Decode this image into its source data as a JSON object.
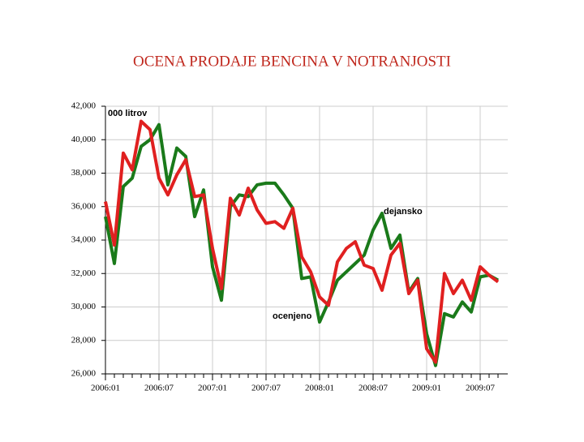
{
  "chart_data": {
    "type": "line",
    "title": "OCENA PRODAJE BENCINA V NOTRANJOSTI",
    "annotations": [
      "000 litrov",
      "dejansko",
      "ocenjeno"
    ],
    "categories": [
      "2006:01",
      null,
      null,
      null,
      null,
      null,
      "2006:07",
      null,
      null,
      null,
      null,
      null,
      "2007:01",
      null,
      null,
      null,
      null,
      null,
      "2007:07",
      null,
      null,
      null,
      null,
      null,
      "2008:01",
      null,
      null,
      null,
      null,
      null,
      "2008:07",
      null,
      null,
      null,
      null,
      null,
      "2009:01",
      null,
      null,
      null,
      null,
      null,
      "2009:07",
      null,
      null
    ],
    "series": [
      {
        "name": "dejansko",
        "color": "#1a7a1a",
        "values": [
          35400,
          32600,
          37200,
          37700,
          39600,
          40000,
          40900,
          37300,
          39500,
          39000,
          35400,
          37000,
          32400,
          30400,
          36000,
          36700,
          36600,
          37300,
          37400,
          37400,
          36700,
          35900,
          31700,
          31800,
          29100,
          30300,
          31600,
          32100,
          32600,
          33100,
          34600,
          35600,
          33500,
          34300,
          30900,
          31700,
          28400,
          26500,
          29600,
          29400,
          30300,
          29700,
          31800,
          31900,
          31600
        ]
      },
      {
        "name": "ocenjeno",
        "color": "#e02020",
        "values": [
          36300,
          33700,
          39200,
          38200,
          41100,
          40600,
          37700,
          36700,
          37900,
          38800,
          36600,
          36700,
          33500,
          31100,
          36500,
          35500,
          37100,
          35800,
          35000,
          35100,
          34700,
          35900,
          33000,
          32100,
          30600,
          30100,
          32700,
          33500,
          33900,
          32500,
          32300,
          31000,
          33100,
          33800,
          30800,
          31600,
          27500,
          26700,
          32000,
          30800,
          31600,
          30400,
          32400,
          31900,
          31500
        ]
      }
    ],
    "ylim": [
      26000,
      42000
    ],
    "yticks": [
      {
        "value": 26000,
        "label": "26,000"
      },
      {
        "value": 28000,
        "label": "28,000"
      },
      {
        "value": 30000,
        "label": "30,000"
      },
      {
        "value": 32000,
        "label": "32,000"
      },
      {
        "value": 34000,
        "label": "34,000"
      },
      {
        "value": 36000,
        "label": "36,000"
      },
      {
        "value": 38000,
        "label": "38,000"
      },
      {
        "value": 40000,
        "label": "40,000"
      },
      {
        "value": 42000,
        "label": "42,000"
      }
    ],
    "grid": true
  }
}
